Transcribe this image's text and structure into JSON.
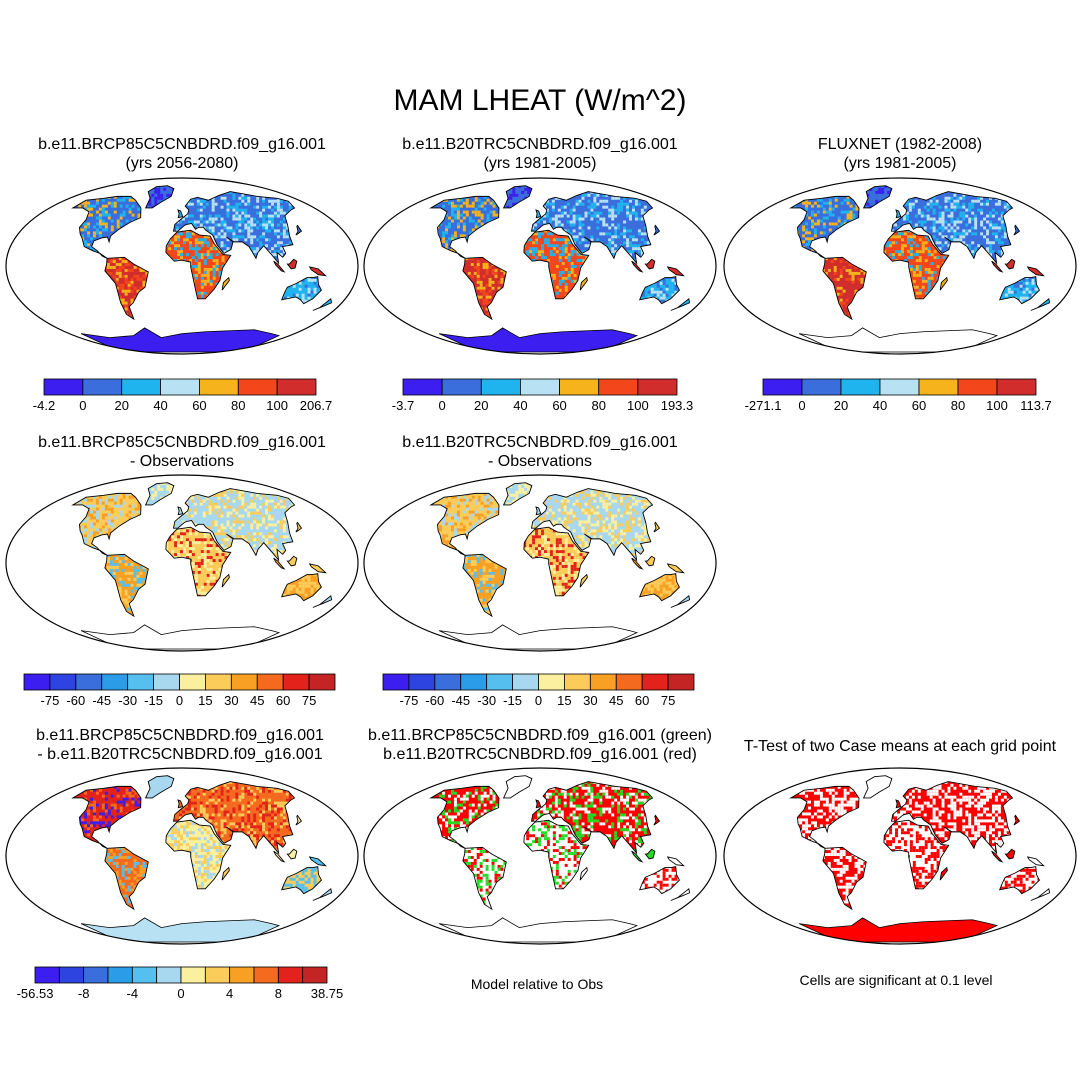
{
  "figure": {
    "title": "MAM LHEAT (W/m^2)"
  },
  "panels": [
    {
      "id": "p1",
      "title_line1": "b.e11.BRCP85C5CNBDRD.f09_g16.001",
      "title_line2": "(yrs 2056-2080)",
      "fill": "absolute",
      "antarctica": "absolute"
    },
    {
      "id": "p2",
      "title_line1": "b.e11.B20TRC5CNBDRD.f09_g16.001",
      "title_line2": "(yrs 1981-2005)",
      "fill": "absolute",
      "antarctica": "absolute"
    },
    {
      "id": "p3",
      "title_line1": "FLUXNET (1982-2008)",
      "title_line2": "(yrs 1981-2005)",
      "fill": "absolute",
      "antarctica": "none"
    },
    {
      "id": "p4",
      "title_line1": "b.e11.BRCP85C5CNBDRD.f09_g16.001",
      "title_line2": "- Observations",
      "fill": "diff",
      "antarctica": "none"
    },
    {
      "id": "p5",
      "title_line1": "b.e11.B20TRC5CNBDRD.f09_g16.001",
      "title_line2": "- Observations",
      "fill": "diff",
      "antarctica": "none"
    },
    {
      "id": "p6",
      "title_line1": "b.e11.BRCP85C5CNBDRD.f09_g16.001",
      "title_line2": "- b.e11.B20TRC5CNBDRD.f09_g16.001",
      "fill": "diff2",
      "antarctica": "light"
    },
    {
      "id": "p7",
      "title_line1": "b.e11.BRCP85C5CNBDRD.f09_g16.001 (green)",
      "title_line2": "b.e11.B20TRC5CNBDRD.f09_g16.001 (red)",
      "fill": "compare",
      "antarctica": "none",
      "note": "Model relative to Obs"
    },
    {
      "id": "p8",
      "title_line1": "T-Test of two Case means at each grid point",
      "title_line2": "",
      "fill": "ttest",
      "antarctica": "red",
      "note": "Cells are significant at 0.1 level"
    }
  ],
  "colorbars": {
    "cb1": {
      "colors": [
        "#3c1ef0",
        "#3a6edc",
        "#1fb4ee",
        "#b8e2f4",
        "#f7b31c",
        "#f4461b",
        "#d22d2d"
      ],
      "labels": [
        "-4.2",
        "0",
        "20",
        "40",
        "60",
        "80",
        "100",
        "206.7"
      ]
    },
    "cb2": {
      "colors": [
        "#3c1ef0",
        "#3a6edc",
        "#1fb4ee",
        "#b8e2f4",
        "#f7b31c",
        "#f4461b",
        "#d22d2d"
      ],
      "labels": [
        "-3.7",
        "0",
        "20",
        "40",
        "60",
        "80",
        "100",
        "193.3"
      ]
    },
    "cb3": {
      "colors": [
        "#3c1ef0",
        "#3a6edc",
        "#1fb4ee",
        "#b8e2f4",
        "#f7b31c",
        "#f4461b",
        "#d22d2d"
      ],
      "labels": [
        "-271.1",
        "0",
        "20",
        "40",
        "60",
        "80",
        "100",
        "113.7"
      ]
    },
    "cb4": {
      "colors": [
        "#3c1ef0",
        "#2e44e0",
        "#3a6edc",
        "#2a9ce8",
        "#55c0f0",
        "#a8d8f0",
        "#fbf0a0",
        "#fccc5a",
        "#f8a024",
        "#f46a1e",
        "#e4221c",
        "#c42424"
      ],
      "labels": [
        "-75",
        "-60",
        "-45",
        "-30",
        "-15",
        "0",
        "15",
        "30",
        "45",
        "60",
        "75"
      ]
    },
    "cb5": {
      "colors": [
        "#3c1ef0",
        "#2e44e0",
        "#3a6edc",
        "#2a9ce8",
        "#55c0f0",
        "#a8d8f0",
        "#fbf0a0",
        "#fccc5a",
        "#f8a024",
        "#f46a1e",
        "#e4221c",
        "#c42424"
      ],
      "labels": [
        "-75",
        "-60",
        "-45",
        "-30",
        "-15",
        "0",
        "15",
        "30",
        "45",
        "60",
        "75"
      ]
    },
    "cb6": {
      "colors": [
        "#3c1ef0",
        "#2e44e0",
        "#3a6edc",
        "#2a9ce8",
        "#55c0f0",
        "#a8d8f0",
        "#fbf0a0",
        "#fccc5a",
        "#f8a024",
        "#f46a1e",
        "#e4221c",
        "#c42424"
      ],
      "labels": [
        "-56.53",
        "-8",
        "-4",
        "0",
        "4",
        "8",
        "38.75"
      ]
    }
  }
}
